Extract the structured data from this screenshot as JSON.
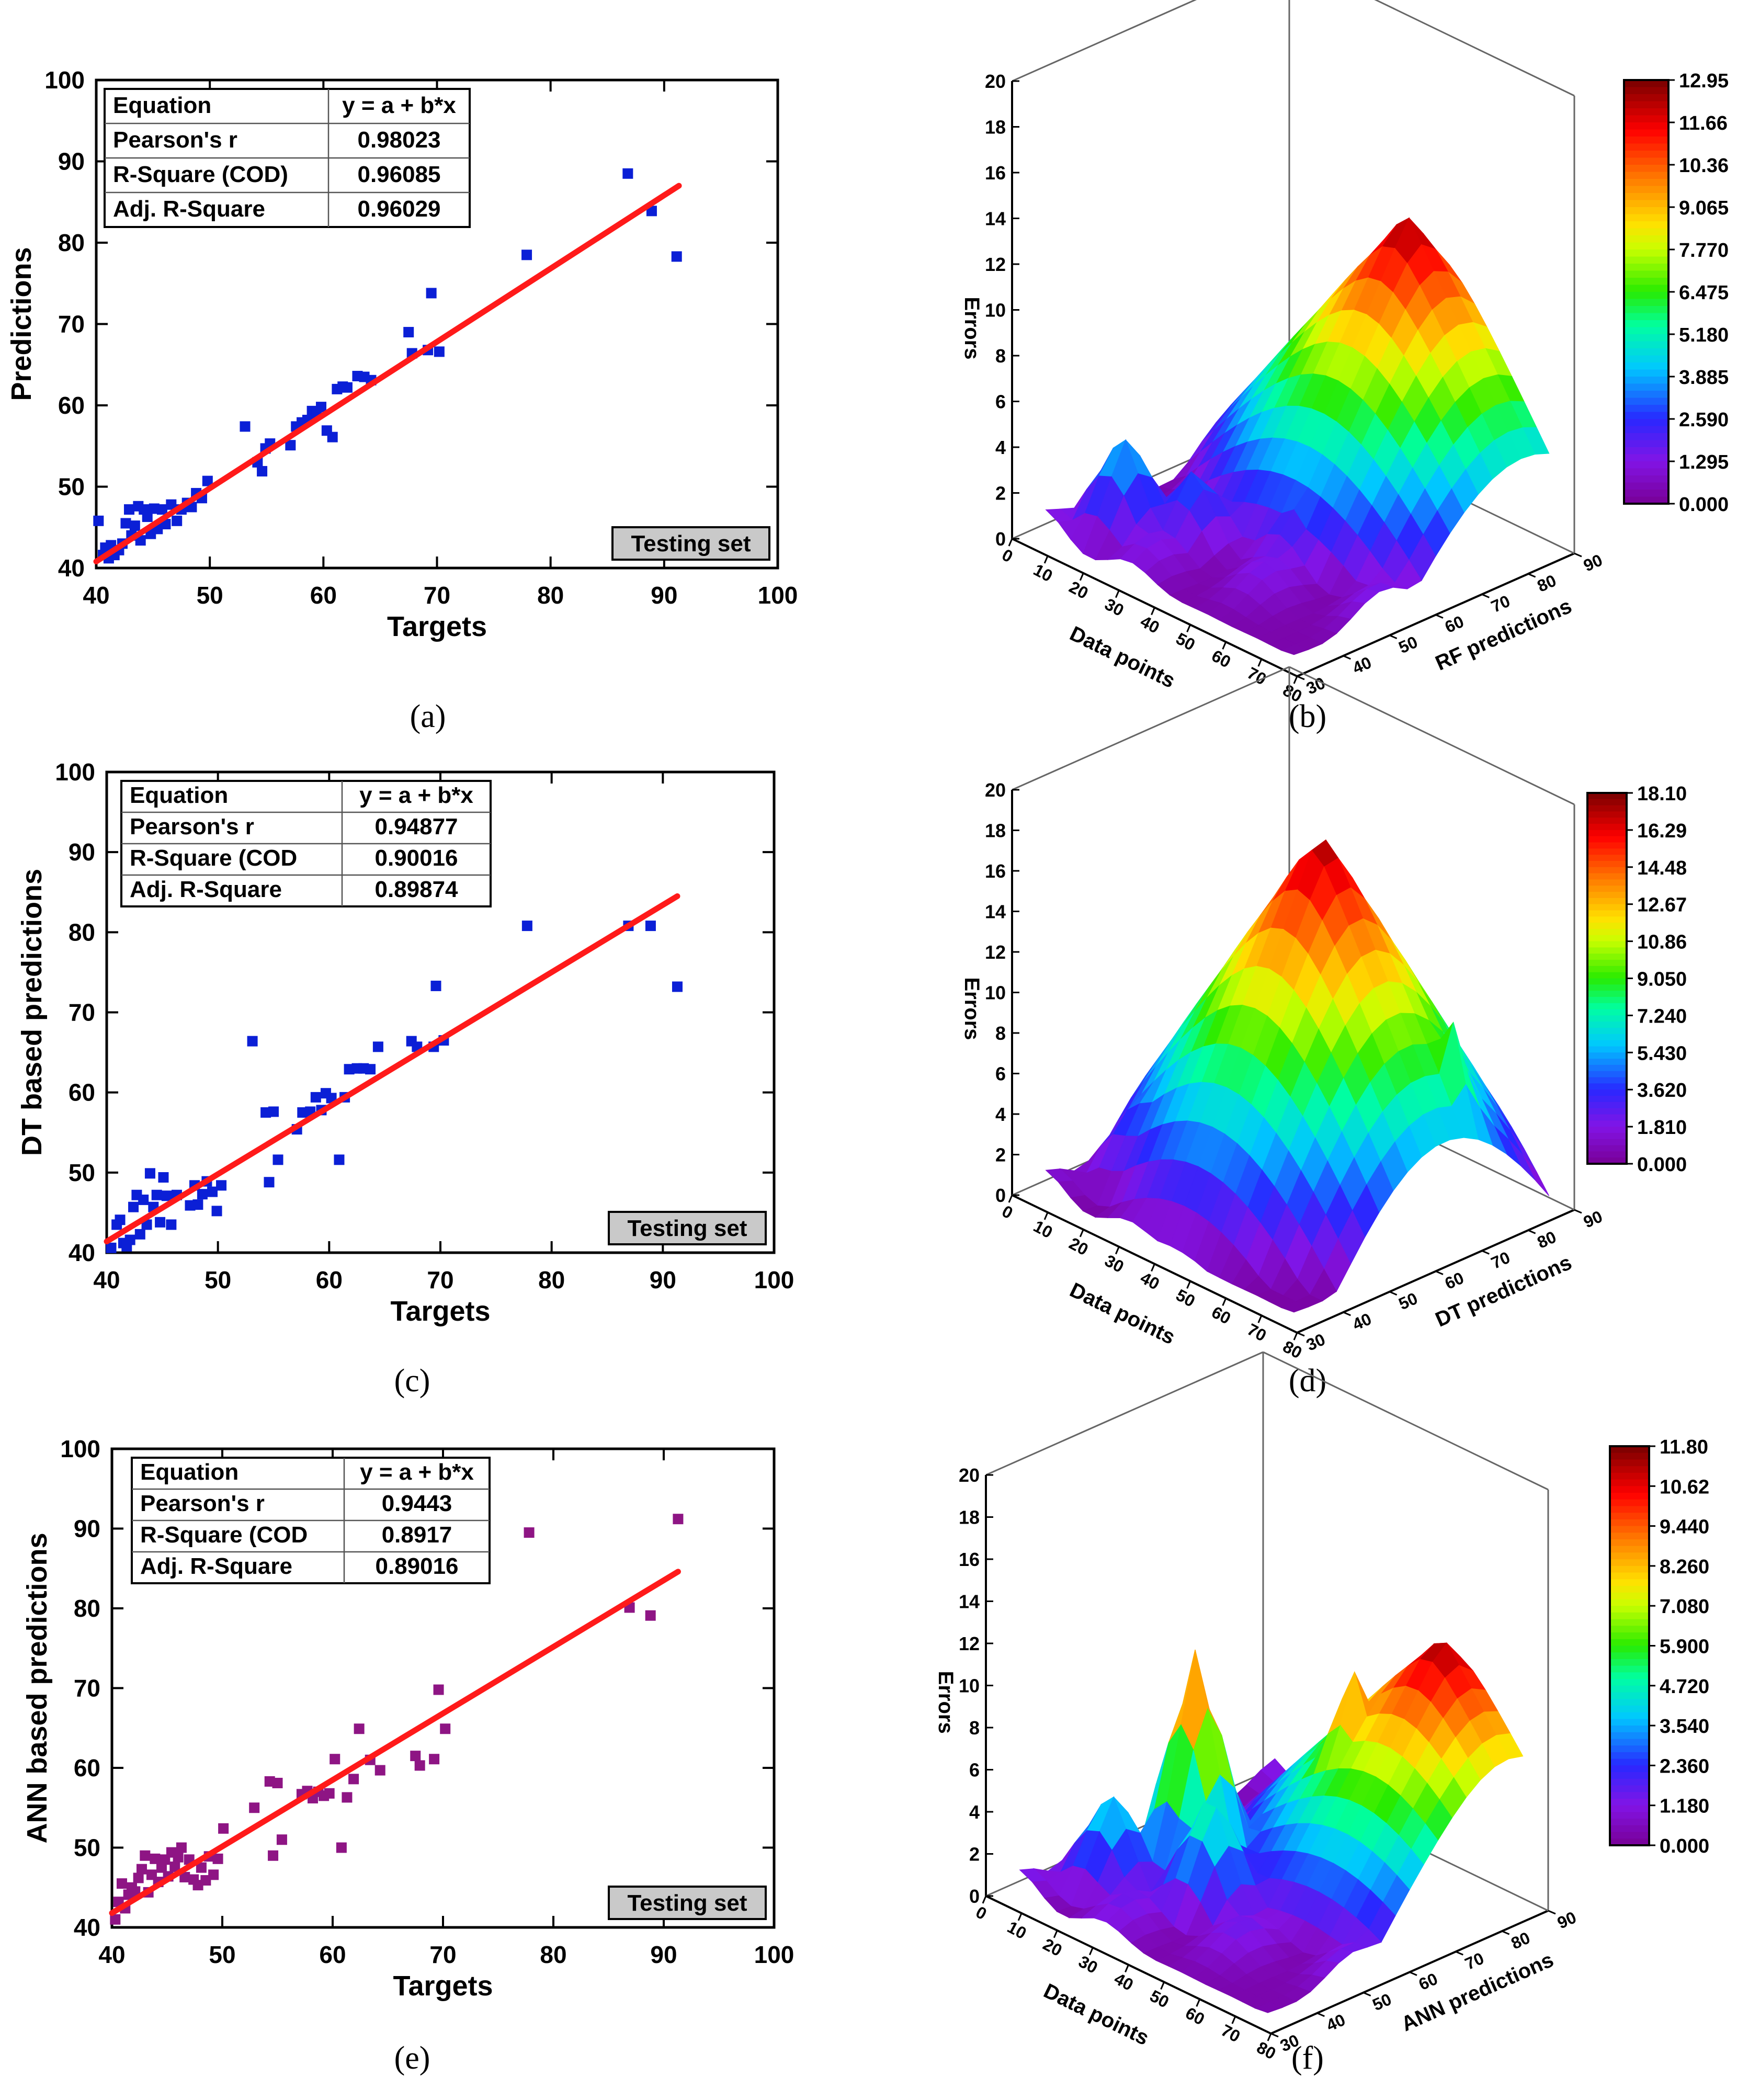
{
  "chart_data": [
    {
      "id": "a",
      "type": "scatter",
      "caption": "(a)",
      "xlabel": "Targets",
      "ylabel": "Predictions",
      "xlim": [
        40,
        100
      ],
      "ylim": [
        40,
        100
      ],
      "xticks": [
        40,
        50,
        60,
        70,
        80,
        90,
        100
      ],
      "yticks": [
        40,
        50,
        60,
        70,
        80,
        90,
        100
      ],
      "marker_color": "#0b1fd6",
      "fit_color": "#ff1a1a",
      "fit_line": {
        "x": [
          40,
          91.3
        ],
        "y": [
          40.8,
          87.0
        ]
      },
      "stats_table": [
        [
          "Equation",
          "y = a + b*x"
        ],
        [
          "Pearson's r",
          "0.98023"
        ],
        [
          "R-Square (COD)",
          "0.96085"
        ],
        [
          "Adj. R-Square",
          "0.96029"
        ]
      ],
      "badge": "Testing set",
      "points": [
        [
          40.2,
          45.8
        ],
        [
          40.6,
          41.6
        ],
        [
          40.8,
          42.5
        ],
        [
          41.1,
          41.2
        ],
        [
          41.3,
          42.8
        ],
        [
          41.6,
          41.6
        ],
        [
          42.0,
          42.2
        ],
        [
          42.3,
          43.0
        ],
        [
          42.6,
          45.5
        ],
        [
          42.9,
          47.2
        ],
        [
          43.1,
          44.0
        ],
        [
          43.4,
          45.2
        ],
        [
          43.7,
          47.6
        ],
        [
          43.9,
          43.4
        ],
        [
          44.2,
          47.2
        ],
        [
          44.5,
          46.3
        ],
        [
          44.8,
          44.2
        ],
        [
          45.1,
          47.3
        ],
        [
          45.4,
          44.8
        ],
        [
          45.8,
          47.2
        ],
        [
          46.1,
          45.4
        ],
        [
          46.6,
          47.8
        ],
        [
          47.1,
          45.8
        ],
        [
          47.5,
          47.2
        ],
        [
          48.0,
          48.0
        ],
        [
          48.4,
          47.5
        ],
        [
          48.8,
          49.2
        ],
        [
          49.3,
          48.6
        ],
        [
          49.8,
          50.7
        ],
        [
          53.1,
          57.4
        ],
        [
          54.2,
          53.0
        ],
        [
          54.6,
          51.9
        ],
        [
          54.9,
          54.7
        ],
        [
          55.3,
          55.3
        ],
        [
          57.1,
          55.1
        ],
        [
          57.6,
          57.4
        ],
        [
          58.1,
          57.9
        ],
        [
          58.6,
          58.2
        ],
        [
          59.0,
          59.3
        ],
        [
          59.4,
          59.0
        ],
        [
          59.8,
          59.8
        ],
        [
          60.3,
          56.9
        ],
        [
          60.8,
          56.1
        ],
        [
          61.2,
          62.0
        ],
        [
          61.7,
          62.3
        ],
        [
          62.1,
          62.2
        ],
        [
          63.0,
          63.6
        ],
        [
          63.6,
          63.5
        ],
        [
          64.2,
          63.1
        ],
        [
          67.5,
          69.0
        ],
        [
          67.8,
          66.4
        ],
        [
          69.2,
          66.8
        ],
        [
          69.5,
          73.8
        ],
        [
          70.2,
          66.6
        ],
        [
          77.9,
          78.5
        ],
        [
          86.8,
          88.5
        ],
        [
          88.9,
          83.9
        ],
        [
          91.1,
          78.3
        ]
      ]
    },
    {
      "id": "b",
      "type": "surface3d",
      "caption": "(b)",
      "xlabel": "Data points",
      "ylabel": "RF predictions",
      "zlabel": "Errors",
      "xticks": [
        0,
        10,
        20,
        30,
        40,
        50,
        60,
        70,
        80
      ],
      "yticks": [
        30,
        40,
        50,
        60,
        70,
        80,
        90
      ],
      "zticks": [
        0,
        2,
        4,
        6,
        8,
        10,
        12,
        14,
        16,
        18,
        20
      ],
      "zlim": [
        0,
        20
      ],
      "colorbar_ticks": [
        "12.95",
        "11.66",
        "10.36",
        "9.065",
        "7.770",
        "6.475",
        "5.180",
        "3.885",
        "2.590",
        "1.295",
        "0.000"
      ],
      "zmax": 12.95,
      "surface": {
        "peak": [
          0.55,
          0.86,
          12.95
        ],
        "bumps": [
          [
            0.2,
            0.2,
            4.9
          ],
          [
            0.35,
            0.3,
            3.6
          ],
          [
            0.6,
            0.4,
            2.8
          ],
          [
            0.72,
            0.55,
            4.5
          ]
        ]
      }
    },
    {
      "id": "c",
      "type": "scatter",
      "caption": "(c)",
      "xlabel": "Targets",
      "ylabel": "DT based predictions",
      "xlim": [
        40,
        100
      ],
      "ylim": [
        40,
        100
      ],
      "xticks": [
        40,
        50,
        60,
        70,
        80,
        90,
        100
      ],
      "yticks": [
        40,
        50,
        60,
        70,
        80,
        90,
        100
      ],
      "marker_color": "#0b1fd6",
      "fit_color": "#ff1a1a",
      "fit_line": {
        "x": [
          40,
          91.3
        ],
        "y": [
          41.4,
          84.5
        ]
      },
      "stats_table": [
        [
          "Equation",
          "y = a + b*x"
        ],
        [
          "Pearson's r",
          "0.94877"
        ],
        [
          "R-Square (COD",
          "0.90016"
        ],
        [
          "Adj. R-Square",
          "0.89874"
        ]
      ],
      "badge": "Testing set",
      "points": [
        [
          40.4,
          40.6
        ],
        [
          40.9,
          43.5
        ],
        [
          41.2,
          44.1
        ],
        [
          41.5,
          41.2
        ],
        [
          41.8,
          40.8
        ],
        [
          42.1,
          41.6
        ],
        [
          42.4,
          45.7
        ],
        [
          42.7,
          47.2
        ],
        [
          43.0,
          42.3
        ],
        [
          43.3,
          46.6
        ],
        [
          43.6,
          43.5
        ],
        [
          43.9,
          49.9
        ],
        [
          44.2,
          45.7
        ],
        [
          44.5,
          47.2
        ],
        [
          44.8,
          43.8
        ],
        [
          45.1,
          49.4
        ],
        [
          45.4,
          47.1
        ],
        [
          45.8,
          43.5
        ],
        [
          46.3,
          47.2
        ],
        [
          47.5,
          45.9
        ],
        [
          47.9,
          48.4
        ],
        [
          48.2,
          46.0
        ],
        [
          48.6,
          47.3
        ],
        [
          49.0,
          48.9
        ],
        [
          49.5,
          47.6
        ],
        [
          49.9,
          45.2
        ],
        [
          50.3,
          48.4
        ],
        [
          53.1,
          66.4
        ],
        [
          54.3,
          57.5
        ],
        [
          54.6,
          48.8
        ],
        [
          55.0,
          57.6
        ],
        [
          55.4,
          51.6
        ],
        [
          57.1,
          55.4
        ],
        [
          57.6,
          57.5
        ],
        [
          58.3,
          57.6
        ],
        [
          58.8,
          59.4
        ],
        [
          59.3,
          57.8
        ],
        [
          59.7,
          59.9
        ],
        [
          60.2,
          59.3
        ],
        [
          60.9,
          51.6
        ],
        [
          61.4,
          59.4
        ],
        [
          61.8,
          62.9
        ],
        [
          62.5,
          63.0
        ],
        [
          63.1,
          63.0
        ],
        [
          63.7,
          62.9
        ],
        [
          64.4,
          65.7
        ],
        [
          67.4,
          66.4
        ],
        [
          67.9,
          65.7
        ],
        [
          69.4,
          65.7
        ],
        [
          69.6,
          73.3
        ],
        [
          70.3,
          66.5
        ],
        [
          77.8,
          80.8
        ],
        [
          86.9,
          80.8
        ],
        [
          88.9,
          80.8
        ],
        [
          91.3,
          73.2
        ]
      ]
    },
    {
      "id": "d",
      "type": "surface3d",
      "caption": "(d)",
      "xlabel": "Data points",
      "ylabel": "DT predictions",
      "zlabel": "Errors",
      "xticks": [
        0,
        10,
        20,
        30,
        40,
        50,
        60,
        70,
        80
      ],
      "yticks": [
        30,
        40,
        50,
        60,
        70,
        80,
        90
      ],
      "zticks": [
        0,
        2,
        4,
        6,
        8,
        10,
        12,
        14,
        16,
        18,
        20
      ],
      "zlim": [
        0,
        20
      ],
      "colorbar_ticks": [
        "18.10",
        "16.29",
        "14.48",
        "12.67",
        "10.86",
        "9.050",
        "7.240",
        "5.430",
        "3.620",
        "1.810",
        "0.000"
      ],
      "zmax": 18.1,
      "surface": {
        "peak": [
          0.52,
          0.58,
          18.1
        ],
        "bumps": [
          [
            0.85,
            0.7,
            11.0
          ],
          [
            0.2,
            0.25,
            4.8
          ],
          [
            0.4,
            0.3,
            5.5
          ],
          [
            0.7,
            0.45,
            6.0
          ]
        ]
      }
    },
    {
      "id": "e",
      "type": "scatter",
      "caption": "(e)",
      "xlabel": "Targets",
      "ylabel": "ANN based predictions",
      "xlim": [
        40,
        100
      ],
      "ylim": [
        40,
        100
      ],
      "xticks": [
        40,
        50,
        60,
        70,
        80,
        90,
        100
      ],
      "yticks": [
        40,
        50,
        60,
        70,
        80,
        90,
        100
      ],
      "marker_color": "#8e1584",
      "fit_color": "#ff1a1a",
      "fit_line": {
        "x": [
          40,
          91.3
        ],
        "y": [
          41.8,
          84.6
        ]
      },
      "stats_table": [
        [
          "Equation",
          "y = a + b*x"
        ],
        [
          "Pearson's r",
          "0.9443"
        ],
        [
          "R-Square (COD",
          "0.8917"
        ],
        [
          "Adj. R-Square",
          "0.89016"
        ]
      ],
      "badge": "Testing set",
      "points": [
        [
          40.3,
          41.0
        ],
        [
          40.6,
          43.2
        ],
        [
          40.9,
          45.5
        ],
        [
          41.2,
          42.4
        ],
        [
          41.5,
          44.1
        ],
        [
          41.8,
          45.0
        ],
        [
          42.1,
          44.5
        ],
        [
          42.4,
          46.2
        ],
        [
          42.7,
          47.3
        ],
        [
          43.0,
          49.0
        ],
        [
          43.3,
          44.4
        ],
        [
          43.6,
          46.6
        ],
        [
          43.9,
          48.6
        ],
        [
          44.2,
          45.7
        ],
        [
          44.5,
          47.5
        ],
        [
          44.8,
          48.5
        ],
        [
          45.1,
          46.4
        ],
        [
          45.4,
          49.4
        ],
        [
          45.7,
          47.6
        ],
        [
          46.0,
          48.8
        ],
        [
          46.3,
          50.0
        ],
        [
          46.6,
          46.3
        ],
        [
          47.0,
          48.5
        ],
        [
          47.4,
          46.0
        ],
        [
          47.8,
          45.3
        ],
        [
          48.1,
          47.5
        ],
        [
          48.5,
          45.9
        ],
        [
          48.8,
          48.9
        ],
        [
          49.2,
          46.6
        ],
        [
          49.6,
          48.6
        ],
        [
          50.1,
          52.4
        ],
        [
          52.9,
          55.0
        ],
        [
          54.3,
          58.3
        ],
        [
          54.6,
          49.0
        ],
        [
          55.0,
          58.1
        ],
        [
          55.4,
          51.0
        ],
        [
          57.2,
          56.7
        ],
        [
          57.7,
          57.1
        ],
        [
          58.2,
          56.2
        ],
        [
          58.7,
          57.0
        ],
        [
          59.2,
          56.5
        ],
        [
          59.7,
          56.8
        ],
        [
          60.2,
          61.1
        ],
        [
          60.8,
          50.0
        ],
        [
          61.3,
          56.3
        ],
        [
          61.9,
          58.6
        ],
        [
          62.4,
          64.9
        ],
        [
          63.4,
          61.0
        ],
        [
          64.3,
          59.7
        ],
        [
          67.5,
          61.5
        ],
        [
          67.9,
          60.3
        ],
        [
          69.2,
          61.1
        ],
        [
          69.6,
          69.8
        ],
        [
          70.2,
          64.9
        ],
        [
          77.8,
          89.5
        ],
        [
          86.9,
          80.1
        ],
        [
          88.8,
          79.1
        ],
        [
          91.3,
          91.2
        ]
      ]
    },
    {
      "id": "f",
      "type": "surface3d",
      "caption": "(f)",
      "xlabel": "Data points",
      "ylabel": "ANN predictions",
      "zlabel": "Errors",
      "xticks": [
        0,
        10,
        20,
        30,
        40,
        50,
        60,
        70,
        80
      ],
      "yticks": [
        30,
        40,
        50,
        60,
        70,
        80,
        90
      ],
      "zticks": [
        0,
        2,
        4,
        6,
        8,
        10,
        12,
        14,
        16,
        18,
        20
      ],
      "zlim": [
        0,
        20
      ],
      "colorbar_ticks": [
        "11.80",
        "10.62",
        "9.440",
        "8.260",
        "7.080",
        "5.900",
        "4.720",
        "3.540",
        "2.360",
        "1.180",
        "0.000"
      ],
      "zmax": 11.8,
      "surface": {
        "peak": [
          0.72,
          0.9,
          11.8
        ],
        "bumps": [
          [
            0.3,
            0.45,
            11.2
          ],
          [
            0.55,
            0.75,
            10.5
          ],
          [
            0.2,
            0.25,
            5.0
          ],
          [
            0.45,
            0.35,
            6.0
          ]
        ]
      }
    }
  ]
}
